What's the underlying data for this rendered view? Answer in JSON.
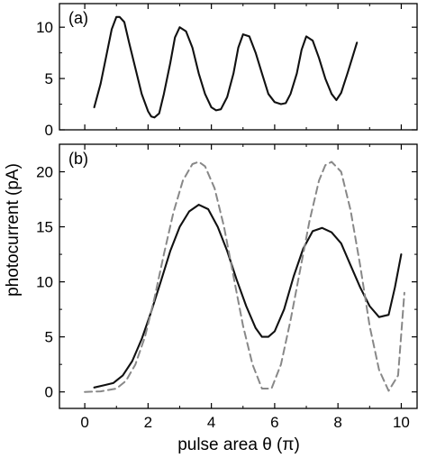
{
  "chart_data": [
    {
      "panel_label": "(a)",
      "type": "line",
      "xlim": [
        -0.8,
        10.5
      ],
      "ylim": [
        0,
        12.3
      ],
      "yticks": [
        0,
        5,
        10
      ],
      "series": [
        {
          "style": "solid",
          "color": "#111111",
          "x": [
            0.3,
            0.5,
            0.7,
            0.85,
            1.0,
            1.1,
            1.25,
            1.4,
            1.6,
            1.8,
            2.0,
            2.1,
            2.2,
            2.35,
            2.5,
            2.7,
            2.85,
            3.0,
            3.2,
            3.4,
            3.6,
            3.8,
            4.0,
            4.15,
            4.3,
            4.5,
            4.7,
            4.85,
            5.0,
            5.2,
            5.4,
            5.6,
            5.8,
            6.0,
            6.2,
            6.35,
            6.5,
            6.7,
            6.85,
            7.0,
            7.2,
            7.4,
            7.6,
            7.8,
            7.95,
            8.1,
            8.3,
            8.45,
            8.6
          ],
          "y": [
            2.2,
            4.5,
            7.5,
            9.8,
            11.0,
            11.0,
            10.5,
            8.5,
            6.0,
            3.5,
            1.8,
            1.3,
            1.2,
            1.6,
            3.5,
            6.5,
            9.0,
            10.0,
            9.6,
            8.0,
            5.5,
            3.5,
            2.2,
            1.9,
            2.0,
            3.2,
            5.5,
            8.0,
            9.3,
            9.1,
            7.5,
            5.5,
            3.5,
            2.7,
            2.5,
            2.6,
            3.5,
            5.5,
            7.8,
            9.1,
            8.7,
            7.0,
            5.0,
            3.5,
            2.9,
            3.6,
            5.5,
            7.0,
            8.5
          ]
        }
      ]
    },
    {
      "panel_label": "(b)",
      "type": "line",
      "xlabel": "pulse area θ (π)",
      "ylabel": "photocurrent (pA)",
      "xlim": [
        -0.8,
        10.5
      ],
      "ylim": [
        -1.5,
        22.5
      ],
      "xticks": [
        0,
        2,
        4,
        6,
        8,
        10
      ],
      "yticks": [
        0,
        5,
        10,
        15,
        20
      ],
      "series": [
        {
          "style": "solid",
          "color": "#111111",
          "x": [
            0.3,
            0.6,
            0.9,
            1.2,
            1.5,
            1.8,
            2.1,
            2.4,
            2.7,
            3.0,
            3.3,
            3.6,
            3.9,
            4.2,
            4.5,
            4.8,
            5.1,
            5.4,
            5.6,
            5.8,
            6.0,
            6.3,
            6.6,
            6.9,
            7.2,
            7.5,
            7.8,
            8.1,
            8.4,
            8.7,
            9.0,
            9.3,
            9.6,
            9.8,
            10.0
          ],
          "y": [
            0.4,
            0.6,
            0.8,
            1.5,
            2.8,
            4.8,
            7.3,
            10.0,
            12.8,
            15.0,
            16.4,
            17.0,
            16.6,
            15.0,
            12.8,
            10.2,
            7.8,
            5.8,
            5.0,
            5.0,
            5.5,
            7.5,
            10.5,
            13.0,
            14.6,
            14.9,
            14.5,
            13.5,
            11.5,
            9.5,
            7.8,
            6.8,
            7.0,
            9.5,
            12.5
          ]
        },
        {
          "style": "dashed",
          "color": "#888888",
          "x": [
            0.0,
            0.5,
            1.0,
            1.3,
            1.6,
            1.9,
            2.2,
            2.5,
            2.8,
            3.1,
            3.4,
            3.6,
            3.8,
            4.1,
            4.4,
            4.7,
            5.0,
            5.3,
            5.6,
            5.9,
            6.2,
            6.5,
            6.8,
            7.1,
            7.4,
            7.6,
            7.8,
            8.1,
            8.4,
            8.7,
            9.0,
            9.3,
            9.6,
            9.9,
            10.1
          ],
          "y": [
            0.0,
            0.05,
            0.3,
            1.0,
            2.5,
            5.0,
            8.5,
            12.5,
            16.3,
            19.2,
            20.7,
            20.9,
            20.5,
            18.5,
            15.0,
            10.5,
            6.0,
            2.5,
            0.3,
            0.3,
            2.5,
            6.5,
            11.0,
            15.5,
            19.2,
            20.6,
            20.9,
            20.0,
            16.5,
            11.5,
            6.0,
            2.0,
            0.1,
            1.5,
            9.0
          ]
        }
      ]
    }
  ]
}
